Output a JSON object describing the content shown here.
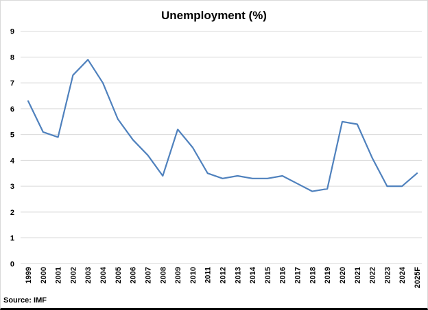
{
  "chart_data": {
    "type": "line",
    "title": "Unemployment (%)",
    "categories": [
      "1999",
      "2000",
      "2001",
      "2002",
      "2003",
      "2004",
      "2005",
      "2006",
      "2007",
      "2008",
      "2009",
      "2010",
      "2011",
      "2012",
      "2013",
      "2014",
      "2015",
      "2016",
      "2017",
      "2018",
      "2019",
      "2020",
      "2021",
      "2022",
      "2023",
      "2024",
      "2025F"
    ],
    "values": [
      6.3,
      5.1,
      4.9,
      7.3,
      7.9,
      7.0,
      5.6,
      4.8,
      4.2,
      3.4,
      5.2,
      4.5,
      3.5,
      3.3,
      3.4,
      3.3,
      3.3,
      3.4,
      3.1,
      2.8,
      2.9,
      5.5,
      5.4,
      4.1,
      3.0,
      3.0,
      3.5
    ],
    "xlabel": "",
    "ylabel": "",
    "ylim": [
      0,
      9
    ],
    "ytick_interval": 1,
    "grid": true,
    "legend_position": "none",
    "source_note": "Source: IMF",
    "line_color": "#4F81BD",
    "gridline_color": "#D9D9D9",
    "text_color": "#000000",
    "background_color": "#FFFFFF"
  }
}
